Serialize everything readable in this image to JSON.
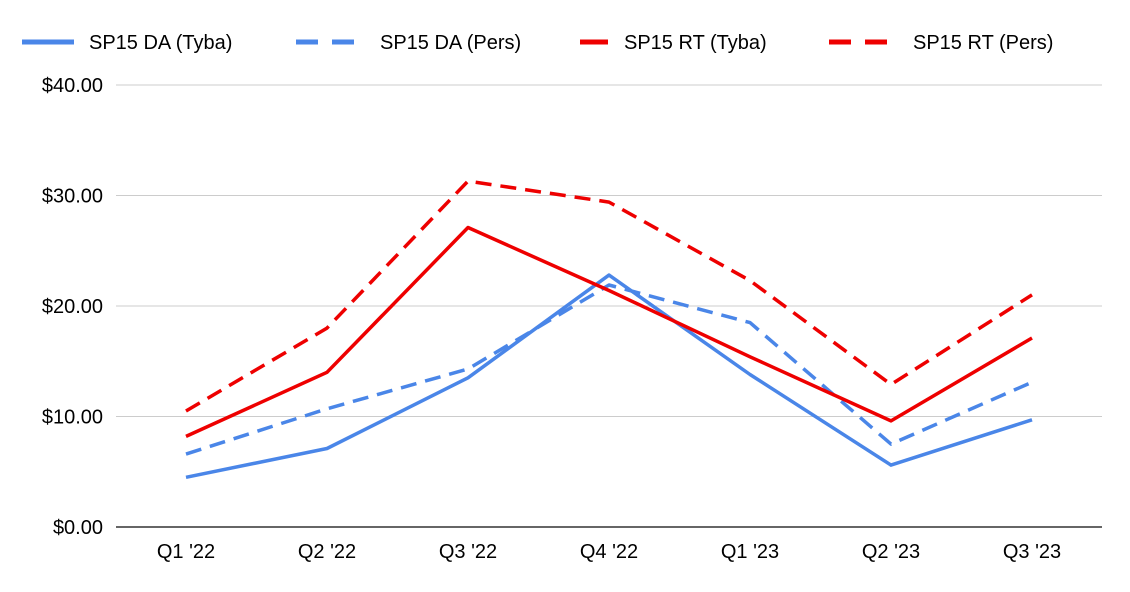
{
  "chart_data": {
    "type": "line",
    "title": "",
    "xlabel": "",
    "ylabel": "",
    "categories": [
      "Q1 '22",
      "Q2 '22",
      "Q3 '22",
      "Q4 '22",
      "Q1 '23",
      "Q2 '23",
      "Q3 '23"
    ],
    "ylim": [
      0,
      40
    ],
    "y_ticks": [
      {
        "value": 0,
        "label": "$0.00"
      },
      {
        "value": 10,
        "label": "$10.00"
      },
      {
        "value": 20,
        "label": "$20.00"
      },
      {
        "value": 30,
        "label": "$30.00"
      },
      {
        "value": 40,
        "label": "$40.00"
      }
    ],
    "grid": true,
    "legend_position": "top",
    "series": [
      {
        "name": "SP15 DA (Tyba)",
        "color": "#4a86e8",
        "dashed": false,
        "values": [
          4.5,
          7.1,
          13.5,
          22.8,
          13.8,
          5.6,
          9.7
        ]
      },
      {
        "name": "SP15 DA (Pers)",
        "color": "#4a86e8",
        "dashed": true,
        "values": [
          6.6,
          10.7,
          14.3,
          21.9,
          18.5,
          7.5,
          13.1
        ]
      },
      {
        "name": "SP15 RT (Tyba)",
        "color": "#ee0000",
        "dashed": false,
        "values": [
          8.2,
          14.0,
          27.1,
          21.4,
          15.4,
          9.6,
          17.1
        ]
      },
      {
        "name": "SP15 RT (Pers)",
        "color": "#ee0000",
        "dashed": true,
        "values": [
          10.5,
          18.0,
          31.3,
          29.4,
          22.3,
          12.9,
          21.0
        ]
      }
    ]
  }
}
